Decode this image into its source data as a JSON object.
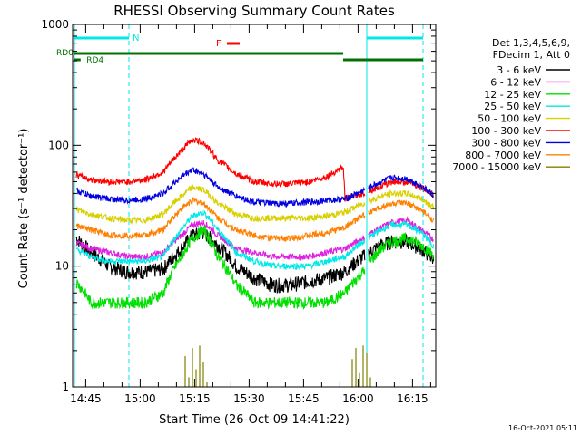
{
  "chart_data": {
    "type": "line",
    "title": "RHESSI Observing Summary Count Rates",
    "xlabel": "Start Time (26-Oct-09 14:41:22)",
    "ylabel": "Count Rate (s⁻¹ detector⁻¹)",
    "y_scale": "log",
    "ylim": [
      1,
      1000
    ],
    "xlim_minutes_since_start": [
      0,
      100
    ],
    "x_ticks": [
      {
        "label": "14:45",
        "t": 3.6
      },
      {
        "label": "15:00",
        "t": 18.6
      },
      {
        "label": "15:15",
        "t": 33.6
      },
      {
        "label": "15:30",
        "t": 48.6
      },
      {
        "label": "15:45",
        "t": 63.6
      },
      {
        "label": "16:00",
        "t": 78.6
      },
      {
        "label": "16:15",
        "t": 93.6
      }
    ],
    "y_ticks": [
      {
        "label": "1",
        "v": 1
      },
      {
        "label": "10",
        "v": 10
      },
      {
        "label": "100",
        "v": 100
      },
      {
        "label": "1000",
        "v": 1000
      }
    ],
    "legend": {
      "placement": "right",
      "header": [
        "Det 1,3,4,5,6,9,",
        "FDecim 1, Att 0"
      ]
    },
    "series": [
      {
        "name": "3 - 6 keV",
        "color": "#000000",
        "x": [
          0,
          5,
          10,
          15,
          20,
          25,
          30,
          33,
          36,
          40,
          45,
          50,
          55,
          60,
          65,
          70,
          75,
          80,
          85,
          88,
          92,
          96,
          100
        ],
        "y": [
          18,
          13,
          10,
          9,
          9,
          9.5,
          14,
          18,
          19,
          15,
          10,
          8,
          7,
          7,
          7.5,
          8,
          9,
          12,
          15,
          16,
          16,
          14,
          11
        ]
      },
      {
        "name": "6 - 12 keV",
        "color": "#e020e0",
        "x": [
          0,
          5,
          10,
          15,
          20,
          25,
          30,
          33,
          36,
          40,
          45,
          50,
          55,
          60,
          65,
          70,
          75,
          80,
          85,
          88,
          92,
          96,
          100
        ],
        "y": [
          16,
          14,
          13,
          12,
          12,
          13,
          18,
          22,
          23,
          18,
          14,
          13,
          12,
          12,
          12,
          13,
          14,
          17,
          21,
          23,
          24,
          20,
          16
        ]
      },
      {
        "name": "12 - 25 keV",
        "color": "#00e000",
        "x": [
          0,
          5,
          10,
          15,
          20,
          25,
          30,
          33,
          36,
          40,
          45,
          50,
          55,
          60,
          65,
          70,
          75,
          80,
          85,
          88,
          92,
          96,
          100
        ],
        "y": [
          8,
          5,
          5,
          5,
          5,
          6,
          12,
          17,
          20,
          12,
          7,
          5,
          5,
          5,
          5,
          5,
          6,
          9,
          14,
          16,
          17,
          15,
          12
        ]
      },
      {
        "name": "25 - 50 keV",
        "color": "#00e8e8",
        "x": [
          0,
          5,
          10,
          15,
          20,
          25,
          30,
          33,
          36,
          40,
          45,
          50,
          55,
          60,
          65,
          70,
          75,
          80,
          85,
          88,
          92,
          96,
          100
        ],
        "y": [
          14,
          12,
          11,
          11,
          11,
          12,
          20,
          26,
          28,
          20,
          13,
          11,
          10,
          10,
          10,
          11,
          12,
          16,
          20,
          22,
          22,
          19,
          14
        ]
      },
      {
        "name": "50 - 100 keV",
        "color": "#d8d000",
        "x": [
          0,
          5,
          10,
          15,
          20,
          25,
          30,
          33,
          36,
          40,
          45,
          50,
          55,
          60,
          65,
          70,
          75,
          80,
          85,
          88,
          92,
          96,
          100
        ],
        "y": [
          30,
          27,
          25,
          24,
          24,
          27,
          38,
          45,
          43,
          33,
          27,
          25,
          25,
          25,
          25,
          26,
          28,
          33,
          38,
          40,
          40,
          36,
          30
        ]
      },
      {
        "name": "100 - 300 keV",
        "color": "#ff0000",
        "x": [
          0,
          5,
          10,
          15,
          20,
          25,
          30,
          33,
          36,
          40,
          45,
          50,
          55,
          60,
          65,
          70,
          74.5,
          75,
          80,
          85,
          88,
          92,
          96,
          100
        ],
        "y": [
          58,
          52,
          50,
          50,
          52,
          60,
          90,
          112,
          105,
          75,
          58,
          50,
          48,
          48,
          50,
          55,
          66,
          36,
          40,
          46,
          50,
          50,
          45,
          38
        ]
      },
      {
        "name": "300 - 800 keV",
        "color": "#0000e0",
        "x": [
          0,
          5,
          10,
          15,
          20,
          25,
          30,
          33,
          36,
          40,
          45,
          50,
          55,
          60,
          65,
          70,
          75,
          80,
          85,
          88,
          92,
          96,
          100
        ],
        "y": [
          43,
          38,
          36,
          35,
          36,
          40,
          55,
          63,
          58,
          45,
          38,
          34,
          33,
          33,
          34,
          35,
          36,
          42,
          50,
          54,
          53,
          46,
          37
        ]
      },
      {
        "name": "800 - 7000 keV",
        "color": "#ff8000",
        "x": [
          0,
          5,
          10,
          15,
          20,
          25,
          30,
          33,
          36,
          40,
          45,
          50,
          55,
          60,
          65,
          70,
          75,
          80,
          85,
          88,
          92,
          96,
          100
        ],
        "y": [
          22,
          20,
          18,
          18,
          18,
          20,
          30,
          35,
          33,
          25,
          20,
          18,
          17,
          17,
          18,
          19,
          21,
          26,
          31,
          33,
          33,
          29,
          23
        ]
      },
      {
        "name": "7000 - 15000 keV",
        "color": "#808000",
        "x": [
          30,
          31,
          32,
          33,
          34,
          35,
          36,
          37,
          76,
          77,
          78,
          79,
          80,
          81,
          82
        ],
        "y": [
          1,
          1.8,
          1.2,
          2.1,
          1.4,
          2.2,
          1.6,
          1.1,
          1,
          1.7,
          2.1,
          1.3,
          2.2,
          1.9,
          1.2
        ]
      }
    ],
    "annotations": [
      {
        "label": "N",
        "color": "#00e8e8"
      },
      {
        "label": "F",
        "color": "#ff0000"
      },
      {
        "label": "RD0",
        "color": "#007000"
      },
      {
        "label": "RD4",
        "color": "#007000"
      }
    ],
    "footer_text": "16-Oct-2021 05:11"
  }
}
